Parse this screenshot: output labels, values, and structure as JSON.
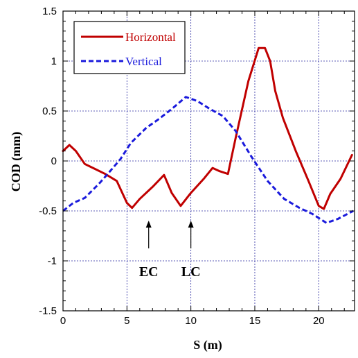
{
  "chart_data": {
    "type": "line",
    "title": "",
    "xlabel": "S (m)",
    "ylabel": "COD (mm)",
    "xlim": [
      0,
      22.8
    ],
    "ylim": [
      -1.5,
      1.5
    ],
    "xticks": [
      "0",
      "5",
      "10",
      "15",
      "20"
    ],
    "yticks": [
      "1.5",
      "1",
      "0.5",
      "0",
      "-0.5",
      "-1",
      "-1.5"
    ],
    "grid": true,
    "legend_position": "top-left",
    "series": [
      {
        "name": "Horizontal",
        "color": "#c00000",
        "style": "solid",
        "x": [
          0,
          0.5,
          1.0,
          1.7,
          2.5,
          3.3,
          4.2,
          5.0,
          5.4,
          6.0,
          7.0,
          7.9,
          8.5,
          9.2,
          10.0,
          11.0,
          11.7,
          12.2,
          12.9,
          13.5,
          14.5,
          15.3,
          15.8,
          16.2,
          16.6,
          17.2,
          18.2,
          19.2,
          20.0,
          20.4,
          20.9,
          21.7,
          22.6
        ],
        "y": [
          0.1,
          0.16,
          0.1,
          -0.03,
          -0.08,
          -0.13,
          -0.2,
          -0.42,
          -0.47,
          -0.38,
          -0.26,
          -0.14,
          -0.32,
          -0.45,
          -0.32,
          -0.18,
          -0.07,
          -0.1,
          -0.13,
          0.23,
          0.8,
          1.13,
          1.13,
          1.0,
          0.7,
          0.43,
          0.1,
          -0.2,
          -0.45,
          -0.48,
          -0.33,
          -0.18,
          0.06
        ]
      },
      {
        "name": "Vertical",
        "color": "#1a1adc",
        "style": "dashed",
        "x": [
          0,
          0.8,
          1.7,
          2.8,
          3.5,
          4.5,
          5.3,
          6.5,
          7.5,
          8.5,
          9.6,
          10.5,
          11.5,
          12.5,
          13.5,
          14.8,
          16.0,
          17.3,
          18.5,
          19.5,
          20.6,
          21.5,
          22.7
        ],
        "y": [
          -0.5,
          -0.42,
          -0.37,
          -0.23,
          -0.13,
          0.02,
          0.18,
          0.33,
          0.42,
          0.52,
          0.64,
          0.6,
          0.52,
          0.45,
          0.3,
          0.03,
          -0.2,
          -0.38,
          -0.47,
          -0.53,
          -0.62,
          -0.58,
          -0.5
        ]
      }
    ],
    "annotations": [
      {
        "text": "EC",
        "x": 6.7
      },
      {
        "text": "LC",
        "x": 10.0
      }
    ]
  }
}
